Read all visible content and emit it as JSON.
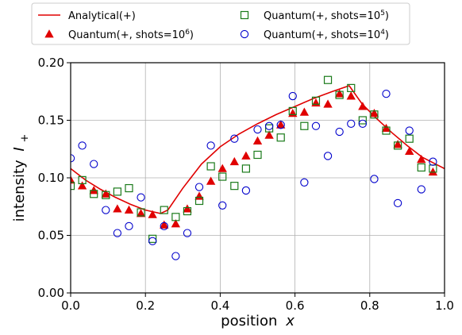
{
  "chart_data": {
    "type": "scatter",
    "xlabel": "position",
    "xlabel_var": "x",
    "ylabel": "intensity",
    "ylabel_var": "I",
    "ylabel_sub": "+",
    "xlim": [
      0.0,
      1.0
    ],
    "ylim": [
      0.0,
      0.2
    ],
    "grid": true,
    "legend_position": "top",
    "x_ticks": [
      "0.0",
      "0.2",
      "0.4",
      "0.6",
      "0.8",
      "1.0"
    ],
    "y_ticks": [
      "0.00",
      "0.05",
      "0.10",
      "0.15",
      "0.20"
    ],
    "x_tick_values": [
      0.0,
      0.2,
      0.4,
      0.6,
      0.8,
      1.0
    ],
    "y_tick_values": [
      0.0,
      0.05,
      0.1,
      0.15,
      0.2
    ],
    "series": [
      {
        "name": "Analytical(+)",
        "label_pre": "Analytical(+)",
        "label_sup": "",
        "label_post": "",
        "kind": "line",
        "color": "#e00000",
        "x": [
          0.0,
          0.04,
          0.08,
          0.12,
          0.16,
          0.2,
          0.24,
          0.26,
          0.3,
          0.35,
          0.4,
          0.45,
          0.5,
          0.55,
          0.6,
          0.65,
          0.7,
          0.745,
          0.78,
          0.82,
          0.86,
          0.9,
          0.94,
          0.97,
          1.0
        ],
        "y": [
          0.108,
          0.098,
          0.09,
          0.083,
          0.077,
          0.072,
          0.069,
          0.072,
          0.091,
          0.112,
          0.127,
          0.138,
          0.147,
          0.155,
          0.162,
          0.169,
          0.175,
          0.18,
          0.164,
          0.151,
          0.139,
          0.128,
          0.118,
          0.113,
          0.108
        ]
      },
      {
        "name": "Quantum(+, shots=10^6)",
        "label_pre": "Quantum(+, shots=10",
        "label_sup": "6",
        "label_post": ")",
        "kind": "triangle",
        "color": "#e00000",
        "x": [
          0.0,
          0.031,
          0.062,
          0.094,
          0.125,
          0.156,
          0.188,
          0.219,
          0.25,
          0.281,
          0.312,
          0.344,
          0.375,
          0.406,
          0.438,
          0.469,
          0.5,
          0.531,
          0.562,
          0.594,
          0.625,
          0.656,
          0.688,
          0.719,
          0.75,
          0.781,
          0.812,
          0.844,
          0.875,
          0.906,
          0.938,
          0.969
        ],
        "y": [
          0.098,
          0.093,
          0.089,
          0.086,
          0.073,
          0.072,
          0.069,
          0.068,
          0.059,
          0.06,
          0.073,
          0.084,
          0.097,
          0.108,
          0.114,
          0.119,
          0.132,
          0.137,
          0.146,
          0.156,
          0.157,
          0.165,
          0.164,
          0.173,
          0.171,
          0.162,
          0.156,
          0.143,
          0.129,
          0.123,
          0.116,
          0.105
        ]
      },
      {
        "name": "Quantum(+, shots=10^5)",
        "label_pre": "Quantum(+, shots=10",
        "label_sup": "5",
        "label_post": ")",
        "kind": "square",
        "color": "#1a7a1a",
        "x": [
          0.0,
          0.031,
          0.062,
          0.094,
          0.125,
          0.156,
          0.188,
          0.219,
          0.25,
          0.281,
          0.312,
          0.344,
          0.375,
          0.406,
          0.438,
          0.469,
          0.5,
          0.531,
          0.562,
          0.594,
          0.625,
          0.656,
          0.688,
          0.719,
          0.75,
          0.781,
          0.812,
          0.844,
          0.875,
          0.906,
          0.938,
          0.969
        ],
        "y": [
          0.093,
          0.098,
          0.086,
          0.085,
          0.088,
          0.091,
          0.07,
          0.047,
          0.072,
          0.066,
          0.071,
          0.08,
          0.11,
          0.101,
          0.093,
          0.108,
          0.12,
          0.143,
          0.135,
          0.158,
          0.145,
          0.167,
          0.185,
          0.172,
          0.178,
          0.15,
          0.155,
          0.141,
          0.128,
          0.134,
          0.109,
          0.108
        ]
      },
      {
        "name": "Quantum(+, shots=10^4)",
        "label_pre": "Quantum(+, shots=10",
        "label_sup": "4",
        "label_post": ")",
        "kind": "circle",
        "color": "#0000cc",
        "x": [
          0.0,
          0.031,
          0.062,
          0.094,
          0.125,
          0.156,
          0.188,
          0.219,
          0.25,
          0.281,
          0.312,
          0.344,
          0.375,
          0.406,
          0.438,
          0.469,
          0.5,
          0.531,
          0.562,
          0.594,
          0.625,
          0.656,
          0.688,
          0.719,
          0.75,
          0.781,
          0.812,
          0.844,
          0.875,
          0.906,
          0.938,
          0.969
        ],
        "y": [
          0.117,
          0.128,
          0.112,
          0.072,
          0.052,
          0.058,
          0.083,
          0.045,
          0.058,
          0.032,
          0.052,
          0.092,
          0.128,
          0.076,
          0.134,
          0.089,
          0.142,
          0.145,
          0.146,
          0.171,
          0.096,
          0.145,
          0.119,
          0.14,
          0.147,
          0.147,
          0.099,
          0.173,
          0.078,
          0.141,
          0.09,
          0.114
        ]
      }
    ]
  }
}
